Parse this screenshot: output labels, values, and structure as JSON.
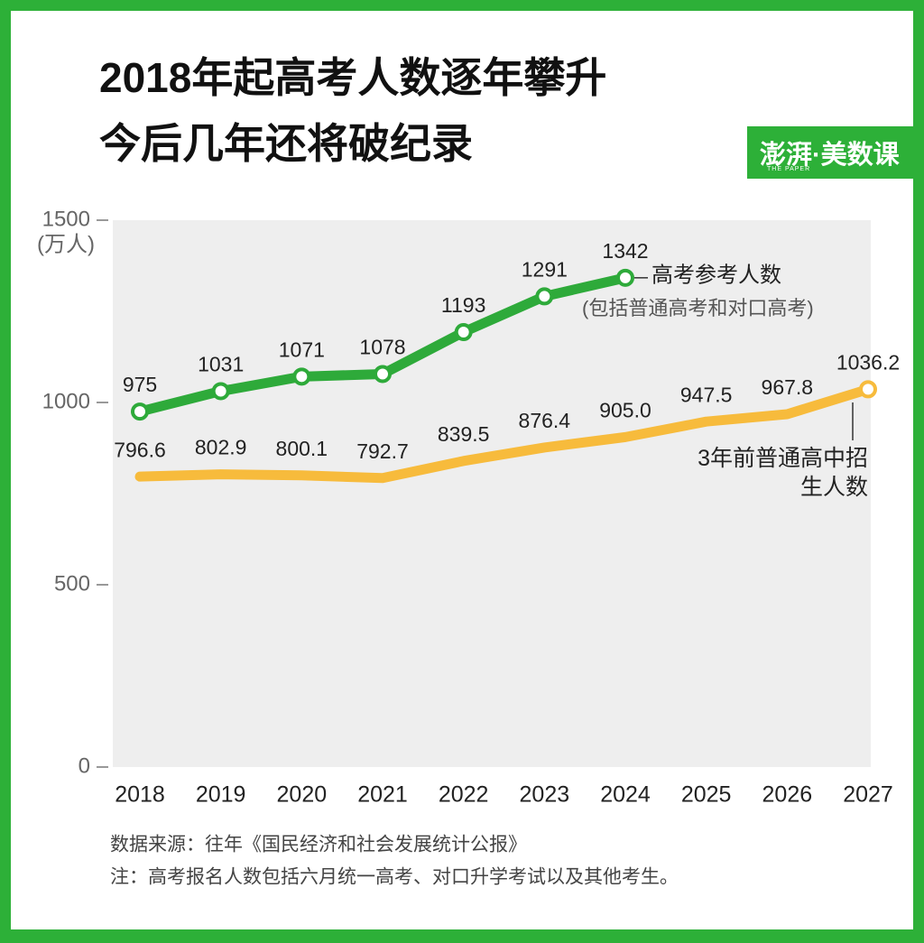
{
  "chart_data": {
    "type": "line",
    "title": [
      "2018年起高考人数逐年攀升",
      "今后几年还将破纪录"
    ],
    "logo": "澎湃·美数课",
    "logo_subtitle": "THE PAPER",
    "y_unit": "(万人)",
    "categories": [
      "2018",
      "2019",
      "2020",
      "2021",
      "2022",
      "2023",
      "2024",
      "2025",
      "2026",
      "2027"
    ],
    "series": [
      {
        "name": "高考参考人数",
        "note": "(包括普通高考和对口高考)",
        "color": "#2eaa3a",
        "values": [
          975,
          1031,
          1071,
          1078,
          1193,
          1291,
          1342,
          null,
          null,
          null
        ]
      },
      {
        "name": "3年前普通高中招生人数",
        "color": "#f7bb3c",
        "values": [
          796.6,
          802.9,
          800.1,
          792.7,
          839.5,
          876.4,
          905.0,
          947.5,
          967.8,
          1036.2
        ],
        "value_labels": [
          "796.6",
          "802.9",
          "800.1",
          "792.7",
          "839.5",
          "876.4",
          "905.0",
          "947.5",
          "967.8",
          "1036.2"
        ]
      }
    ],
    "ylim": [
      0,
      1500
    ],
    "yticks": [
      0,
      500,
      1000,
      1500
    ],
    "footnotes": [
      "数据来源：往年《国民经济和社会发展统计公报》",
      "注：高考报名人数包括六月统一高考、对口升学考试以及其他考生。"
    ]
  }
}
